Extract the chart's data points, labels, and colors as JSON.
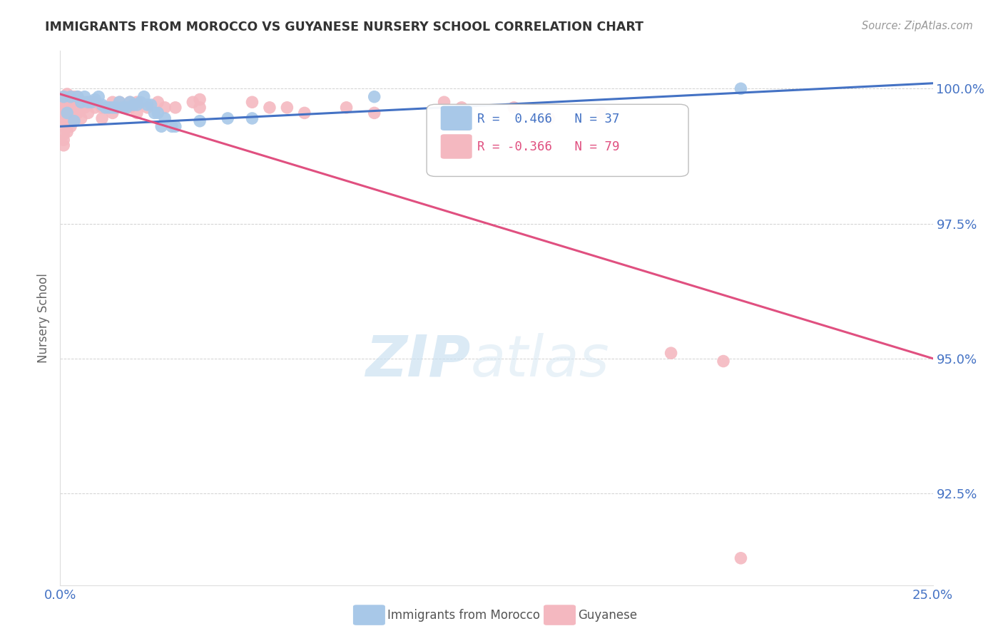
{
  "title": "IMMIGRANTS FROM MOROCCO VS GUYANESE NURSERY SCHOOL CORRELATION CHART",
  "source": "Source: ZipAtlas.com",
  "ylabel": "Nursery School",
  "ytick_labels": [
    "100.0%",
    "97.5%",
    "95.0%",
    "92.5%"
  ],
  "ytick_values": [
    1.0,
    0.975,
    0.95,
    0.925
  ],
  "xlim": [
    0.0,
    0.25
  ],
  "ylim": [
    0.908,
    1.007
  ],
  "legend_r_blue": "R =  0.466",
  "legend_n_blue": "N = 37",
  "legend_r_pink": "R = -0.366",
  "legend_n_pink": "N = 79",
  "blue_color": "#a8c8e8",
  "pink_color": "#f4b8c0",
  "line_blue_color": "#4472c4",
  "line_pink_color": "#e05080",
  "title_color": "#333333",
  "axis_label_color": "#4472c4",
  "watermark_zip": "ZIP",
  "watermark_atlas": "atlas",
  "blue_scatter": [
    [
      0.001,
      0.9985
    ],
    [
      0.003,
      0.9985
    ],
    [
      0.005,
      0.9985
    ],
    [
      0.006,
      0.9975
    ],
    [
      0.007,
      0.9985
    ],
    [
      0.008,
      0.9975
    ],
    [
      0.009,
      0.9975
    ],
    [
      0.01,
      0.998
    ],
    [
      0.011,
      0.9985
    ],
    [
      0.012,
      0.997
    ],
    [
      0.013,
      0.9965
    ],
    [
      0.014,
      0.9965
    ],
    [
      0.015,
      0.9965
    ],
    [
      0.016,
      0.9965
    ],
    [
      0.017,
      0.9975
    ],
    [
      0.018,
      0.9965
    ],
    [
      0.019,
      0.9965
    ],
    [
      0.02,
      0.9975
    ],
    [
      0.021,
      0.997
    ],
    [
      0.022,
      0.997
    ],
    [
      0.023,
      0.9975
    ],
    [
      0.024,
      0.9985
    ],
    [
      0.025,
      0.997
    ],
    [
      0.026,
      0.997
    ],
    [
      0.027,
      0.9955
    ],
    [
      0.028,
      0.9955
    ],
    [
      0.029,
      0.993
    ],
    [
      0.03,
      0.9945
    ],
    [
      0.032,
      0.993
    ],
    [
      0.033,
      0.993
    ],
    [
      0.04,
      0.994
    ],
    [
      0.048,
      0.9945
    ],
    [
      0.055,
      0.9945
    ],
    [
      0.002,
      0.9955
    ],
    [
      0.09,
      0.9985
    ],
    [
      0.195,
      1.0
    ],
    [
      0.004,
      0.994
    ]
  ],
  "pink_scatter": [
    [
      0.001,
      0.9985
    ],
    [
      0.001,
      0.9975
    ],
    [
      0.001,
      0.997
    ],
    [
      0.001,
      0.9965
    ],
    [
      0.001,
      0.9955
    ],
    [
      0.001,
      0.9945
    ],
    [
      0.001,
      0.993
    ],
    [
      0.001,
      0.9915
    ],
    [
      0.001,
      0.9905
    ],
    [
      0.001,
      0.9895
    ],
    [
      0.002,
      0.999
    ],
    [
      0.002,
      0.998
    ],
    [
      0.002,
      0.9975
    ],
    [
      0.002,
      0.997
    ],
    [
      0.002,
      0.9965
    ],
    [
      0.002,
      0.9955
    ],
    [
      0.002,
      0.9945
    ],
    [
      0.002,
      0.994
    ],
    [
      0.002,
      0.993
    ],
    [
      0.002,
      0.992
    ],
    [
      0.003,
      0.9985
    ],
    [
      0.003,
      0.998
    ],
    [
      0.003,
      0.9975
    ],
    [
      0.003,
      0.997
    ],
    [
      0.003,
      0.9965
    ],
    [
      0.003,
      0.9955
    ],
    [
      0.003,
      0.9945
    ],
    [
      0.003,
      0.993
    ],
    [
      0.004,
      0.9985
    ],
    [
      0.004,
      0.9975
    ],
    [
      0.004,
      0.9965
    ],
    [
      0.004,
      0.9955
    ],
    [
      0.004,
      0.9945
    ],
    [
      0.005,
      0.9985
    ],
    [
      0.005,
      0.997
    ],
    [
      0.005,
      0.9965
    ],
    [
      0.005,
      0.9955
    ],
    [
      0.006,
      0.9975
    ],
    [
      0.006,
      0.9965
    ],
    [
      0.006,
      0.9945
    ],
    [
      0.007,
      0.9975
    ],
    [
      0.007,
      0.9965
    ],
    [
      0.008,
      0.997
    ],
    [
      0.008,
      0.9955
    ],
    [
      0.009,
      0.9975
    ],
    [
      0.01,
      0.9975
    ],
    [
      0.01,
      0.9965
    ],
    [
      0.012,
      0.9965
    ],
    [
      0.012,
      0.9945
    ],
    [
      0.013,
      0.9965
    ],
    [
      0.014,
      0.9965
    ],
    [
      0.015,
      0.9975
    ],
    [
      0.015,
      0.9955
    ],
    [
      0.017,
      0.9975
    ],
    [
      0.018,
      0.9965
    ],
    [
      0.02,
      0.9975
    ],
    [
      0.02,
      0.9965
    ],
    [
      0.022,
      0.9975
    ],
    [
      0.022,
      0.9955
    ],
    [
      0.025,
      0.9965
    ],
    [
      0.028,
      0.9975
    ],
    [
      0.03,
      0.9965
    ],
    [
      0.033,
      0.9965
    ],
    [
      0.038,
      0.9975
    ],
    [
      0.04,
      0.998
    ],
    [
      0.04,
      0.9965
    ],
    [
      0.055,
      0.9975
    ],
    [
      0.06,
      0.9965
    ],
    [
      0.065,
      0.9965
    ],
    [
      0.07,
      0.9955
    ],
    [
      0.082,
      0.9965
    ],
    [
      0.09,
      0.9955
    ],
    [
      0.11,
      0.9975
    ],
    [
      0.115,
      0.9965
    ],
    [
      0.13,
      0.9965
    ],
    [
      0.14,
      0.9945
    ],
    [
      0.155,
      0.9955
    ],
    [
      0.175,
      0.951
    ],
    [
      0.19,
      0.9495
    ],
    [
      0.195,
      0.913
    ]
  ],
  "blue_line": [
    [
      0.0,
      0.993
    ],
    [
      0.25,
      1.001
    ]
  ],
  "pink_line": [
    [
      0.0,
      0.999
    ],
    [
      0.25,
      0.95
    ]
  ]
}
